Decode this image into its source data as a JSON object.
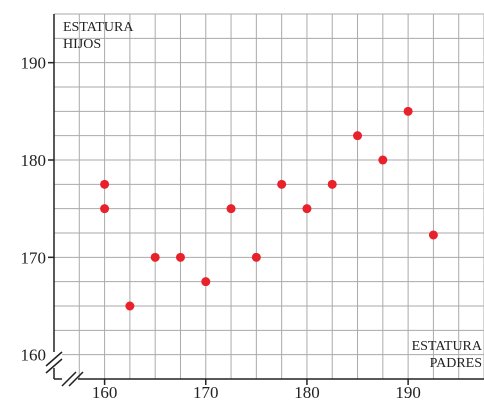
{
  "chart_data": {
    "type": "scatter",
    "y_title": [
      "ESTATURA",
      "HIJOS"
    ],
    "x_title": [
      "ESTATURA",
      "PADRES"
    ],
    "xlim": [
      155,
      197.5
    ],
    "ylim": [
      157.5,
      195
    ],
    "x_ticks": [
      160,
      170,
      180,
      190
    ],
    "y_ticks": [
      160,
      170,
      180,
      190
    ],
    "x_tick_labels": [
      "160",
      "170",
      "180",
      "190"
    ],
    "y_tick_labels": [
      "160",
      "170",
      "180",
      "190"
    ],
    "minor_grid_step": 2.5,
    "grid": true,
    "axis_break_marks": true,
    "point_color": "#e8212b",
    "grid_color": "#aaaaaa",
    "points": [
      {
        "x": 160,
        "y": 177.5
      },
      {
        "x": 160,
        "y": 175
      },
      {
        "x": 162.5,
        "y": 165
      },
      {
        "x": 165,
        "y": 170
      },
      {
        "x": 167.5,
        "y": 170
      },
      {
        "x": 170,
        "y": 167.5
      },
      {
        "x": 172.5,
        "y": 175
      },
      {
        "x": 175,
        "y": 170
      },
      {
        "x": 177.5,
        "y": 177.5
      },
      {
        "x": 180,
        "y": 175
      },
      {
        "x": 182.5,
        "y": 177.5
      },
      {
        "x": 185,
        "y": 182.5
      },
      {
        "x": 187.5,
        "y": 180
      },
      {
        "x": 190,
        "y": 185
      },
      {
        "x": 192.5,
        "y": 172.3
      }
    ]
  }
}
